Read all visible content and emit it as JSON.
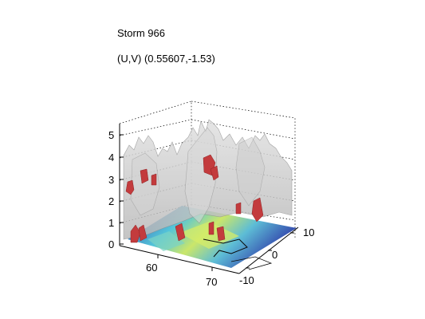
{
  "figure": {
    "title_lines": [
      "Storm 966",
      "(U,V) (0.55607,-1.53)"
    ]
  },
  "chart_data": {
    "type": "surface3d",
    "title": "Storm 966",
    "subtitle": "(U,V) (0.55607,-1.53)",
    "xlabel": "",
    "ylabel": "",
    "zlabel": "",
    "x_ticks": [
      60,
      70
    ],
    "y_ticks": [
      -10,
      0,
      10
    ],
    "z_ticks": [
      0,
      1,
      2,
      3,
      4,
      5
    ],
    "xlim": [
      52,
      72
    ],
    "ylim": [
      -12,
      12
    ],
    "zlim": [
      0,
      5.5
    ],
    "grid": "dotted",
    "colors": {
      "isosurface": "#c8c8c8",
      "isosurface_edge": "#8a8a8a",
      "core_isosurface": "#c0393b",
      "floor_low": "#1e2f9a",
      "floor_mid": "#3dbfd3",
      "floor_high": "#c7e65a"
    },
    "isosurface_peaks": [
      {
        "x": 54,
        "y": -8,
        "z": 3.9
      },
      {
        "x": 56,
        "y": -5,
        "z": 4.3
      },
      {
        "x": 58,
        "y": -2,
        "z": 4.1
      },
      {
        "x": 60,
        "y": 1,
        "z": 4.4
      },
      {
        "x": 62,
        "y": 3,
        "z": 5.2
      },
      {
        "x": 64,
        "y": 6,
        "z": 4.9
      },
      {
        "x": 66,
        "y": 8,
        "z": 4.4
      },
      {
        "x": 68,
        "y": 10,
        "z": 3.6
      }
    ],
    "core_cells": [
      {
        "x": 54,
        "y": -10,
        "z": 0.4
      },
      {
        "x": 53,
        "y": -11,
        "z": 3.0
      },
      {
        "x": 57,
        "y": -7,
        "z": 0.4
      },
      {
        "x": 58,
        "y": -4,
        "z": 3.4
      },
      {
        "x": 60,
        "y": -2,
        "z": 0.5
      },
      {
        "x": 62,
        "y": 2,
        "z": 4.0
      },
      {
        "x": 64,
        "y": 4,
        "z": 0.7
      },
      {
        "x": 66,
        "y": 8,
        "z": 1.8
      }
    ]
  }
}
